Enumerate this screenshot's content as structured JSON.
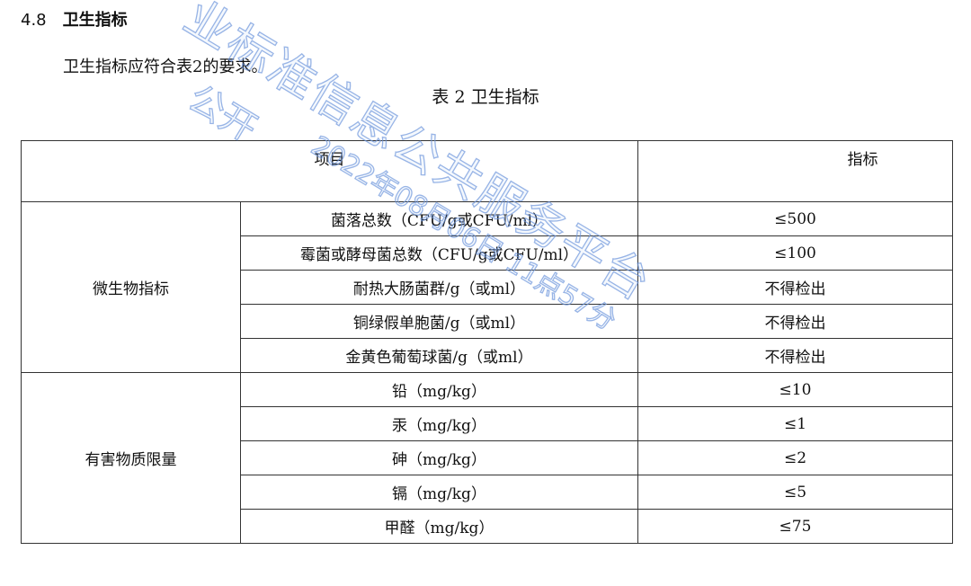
{
  "section": {
    "number": "4.8",
    "title": "卫生指标"
  },
  "paragraph": "卫生指标应符合表2的要求。",
  "table_caption": "表 2 卫生指标",
  "table": {
    "headers": [
      "项目",
      "指标"
    ],
    "groups": [
      {
        "category": "微生物指标",
        "rows": [
          {
            "item": "菌落总数（CFU/g或CFU/ml）",
            "value": "≤500"
          },
          {
            "item": "霉菌或酵母菌总数（CFU/g或CFU/ml）",
            "value": "≤100"
          },
          {
            "item": "耐热大肠菌群/g（或ml）",
            "value": "不得检出"
          },
          {
            "item": "铜绿假单胞菌/g（或ml）",
            "value": "不得检出"
          },
          {
            "item": "金黄色葡萄球菌/g（或ml）",
            "value": "不得检出"
          }
        ]
      },
      {
        "category": "有害物质限量",
        "rows": [
          {
            "item": "铅（mg/kg）",
            "value": "≤10"
          },
          {
            "item": "汞（mg/kg）",
            "value": "≤1"
          },
          {
            "item": "砷（mg/kg）",
            "value": "≤2"
          },
          {
            "item": "镉（mg/kg）",
            "value": "≤5"
          },
          {
            "item": "甲醛（mg/kg）",
            "value": "≤75"
          }
        ]
      }
    ]
  },
  "watermark": {
    "line1": "业标准信息公共服务平台",
    "line2": "公开",
    "line3": "2022年08月06日 11点57分",
    "color": "#6e96dc"
  }
}
